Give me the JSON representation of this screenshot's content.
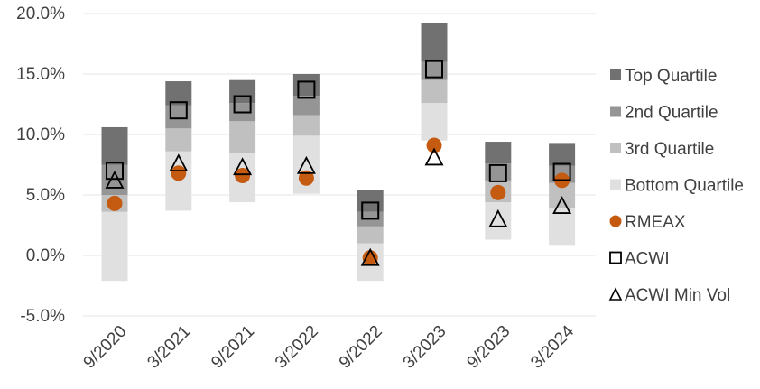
{
  "chart_data": {
    "type": "floating-bar-with-markers",
    "categories": [
      "9/2020",
      "3/2021",
      "9/2021",
      "3/2022",
      "9/2022",
      "3/2023",
      "9/2023",
      "3/2024"
    ],
    "y_ticks": [
      "-5.0%",
      "0.0%",
      "5.0%",
      "10.0%",
      "15.0%",
      "20.0%"
    ],
    "ylim": [
      -5,
      20
    ],
    "grid": true,
    "legend_position": "right",
    "quartile_bands": {
      "bottom": [
        -2.1,
        3.7,
        4.4,
        5.1,
        -2.1,
        9.5,
        1.3,
        0.8
      ],
      "q3_start": [
        3.6,
        8.6,
        8.5,
        9.9,
        1.0,
        12.6,
        4.4,
        3.9
      ],
      "q2_start": [
        5.0,
        10.5,
        11.1,
        11.6,
        2.4,
        14.5,
        6.2,
        6.0
      ],
      "q1_start": [
        7.5,
        12.4,
        12.6,
        13.2,
        3.6,
        16.0,
        7.6,
        7.4
      ],
      "top": [
        10.6,
        14.4,
        14.5,
        15.0,
        5.4,
        19.2,
        9.4,
        9.3
      ]
    },
    "series": [
      {
        "name": "RMEAX",
        "marker": "circle",
        "values": [
          4.3,
          6.8,
          6.6,
          6.4,
          -0.2,
          9.1,
          5.2,
          6.2
        ]
      },
      {
        "name": "ACWI",
        "marker": "square",
        "values": [
          7.0,
          12.0,
          12.5,
          13.7,
          3.7,
          15.4,
          6.8,
          6.9
        ]
      },
      {
        "name": "ACWI Min Vol",
        "marker": "triangle",
        "values": [
          6.2,
          7.6,
          7.3,
          7.4,
          -0.2,
          8.1,
          3.0,
          4.1
        ]
      }
    ],
    "legend": [
      {
        "label": "Top Quartile",
        "swatch": "#717171"
      },
      {
        "label": "2nd Quartile",
        "swatch": "#959595"
      },
      {
        "label": "3rd Quartile",
        "swatch": "#c0c0c0"
      },
      {
        "label": "Bottom Quartile",
        "swatch": "#e0e0e0"
      },
      {
        "label": "RMEAX",
        "swatch": "circle"
      },
      {
        "label": "ACWI",
        "swatch": "square"
      },
      {
        "label": "ACWI Min Vol",
        "swatch": "triangle"
      }
    ]
  },
  "colors": {
    "top": "#717171",
    "second": "#959595",
    "third": "#c0c0c0",
    "bottom": "#e0e0e0",
    "rmeax": "#c55a11",
    "marker_stroke": "#000000",
    "grid": "#e6e6e6",
    "text": "#404040"
  }
}
